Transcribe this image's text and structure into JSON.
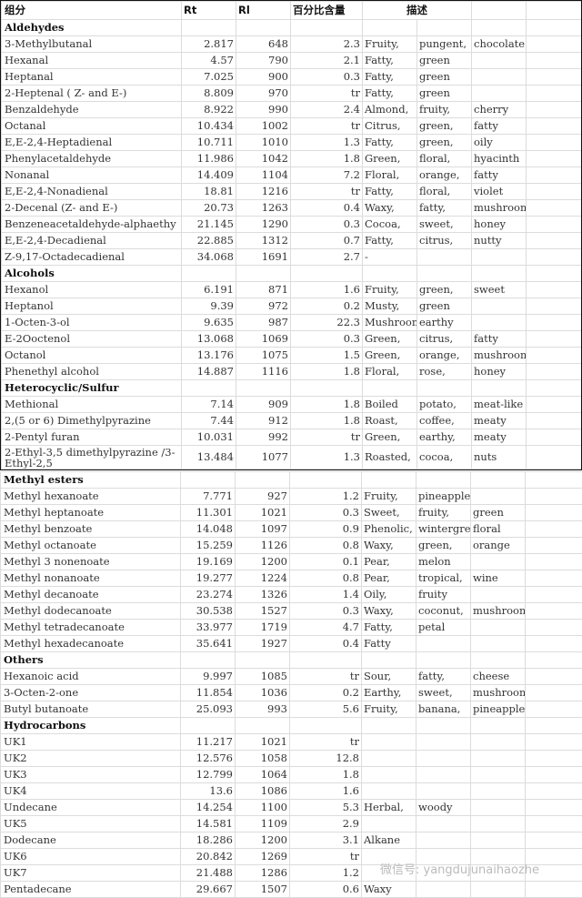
{
  "header": [
    "组分",
    "Rt",
    "Rl",
    "百分比含量",
    "描述"
  ],
  "top_rows": [
    {
      "cat": "Aldehydes"
    },
    [
      "3-Methylbutanal",
      "2.817",
      "648",
      "2.3",
      "Fruity,",
      "pungent,",
      "chocolate"
    ],
    [
      "Hexanal",
      "4.57",
      "790",
      "2.1",
      "Fatty,",
      "green",
      ""
    ],
    [
      "Heptanal",
      "7.025",
      "900",
      "0.3",
      "Fatty,",
      "green",
      ""
    ],
    [
      "2-Heptenal ( Z- and E-)",
      "8.809",
      "970",
      "tr",
      "Fatty,",
      "green",
      ""
    ],
    [
      "Benzaldehyde",
      "8.922",
      "990",
      "2.4",
      "Almond,",
      "fruity,",
      "cherry"
    ],
    [
      "Octanal",
      "10.434",
      "1002",
      "tr",
      "Citrus,",
      "green,",
      "fatty"
    ],
    [
      "E,E-2,4-Heptadienal",
      "10.711",
      "1010",
      "1.3",
      "Fatty,",
      "green,",
      "oily"
    ],
    [
      "Phenylacetaldehyde",
      "11.986",
      "1042",
      "1.8",
      "Green,",
      "floral,",
      "hyacinth"
    ],
    [
      "Nonanal",
      "14.409",
      "1104",
      "7.2",
      "Floral,",
      "orange,",
      "fatty"
    ],
    [
      "E,E-2,4-Nonadienal",
      "18.81",
      "1216",
      "tr",
      "Fatty,",
      "floral,",
      "violet"
    ],
    [
      "2-Decenal (Z- and E-)",
      "20.73",
      "1263",
      "0.4",
      "Waxy,",
      "fatty,",
      "mushroom"
    ],
    [
      "Benzeneacetaldehyde-alphaethy",
      "21.145",
      "1290",
      "0.3",
      "Cocoa,",
      "sweet,",
      "honey"
    ],
    [
      "E,E-2,4-Decadienal",
      "22.885",
      "1312",
      "0.7",
      "Fatty,",
      "citrus,",
      "nutty"
    ],
    [
      "Z-9,17-Octadecadienal",
      "34.068",
      "1691",
      "2.7",
      "-",
      "",
      ""
    ],
    {
      "cat": "Alcohols"
    },
    [
      "Hexanol",
      "6.191",
      "871",
      "1.6",
      "Fruity,",
      "green,",
      "sweet"
    ],
    [
      "Heptanol",
      "9.39",
      "972",
      "0.2",
      "Musty,",
      "green",
      ""
    ],
    [
      "1-Octen-3-ol",
      "9.635",
      "987",
      "22.3",
      "Mushroom,",
      "earthy",
      ""
    ],
    [
      "E-2Ooctenol",
      "13.068",
      "1069",
      "0.3",
      "Green,",
      "citrus,",
      "fatty"
    ],
    [
      "Octanol",
      "13.176",
      "1075",
      "1.5",
      "Green,",
      "orange,",
      "mushroom"
    ],
    [
      "Phenethyl alcohol",
      "14.887",
      "1116",
      "1.8",
      "Floral,",
      "rose,",
      "honey"
    ],
    {
      "cat": "Heterocyclic/Sulfur"
    },
    [
      "Methional",
      "7.14",
      "909",
      "1.8",
      "Boiled",
      "potato,",
      "meat-like"
    ],
    [
      "2,(5 or 6) Dimethylpyrazine",
      "7.44",
      "912",
      "1.8",
      "Roast,",
      "coffee,",
      "meaty"
    ],
    [
      "2-Pentyl furan",
      "10.031",
      "992",
      "tr",
      "Green,",
      "earthy,",
      "meaty"
    ],
    {
      "tall": true,
      "row": [
        "2-Ethyl-3,5 dimethylpyrazine /3-Ethyl-2,5",
        "13.484",
        "1077",
        "1.3",
        "Roasted,",
        "cocoa,",
        "nuts"
      ]
    }
  ],
  "bottom_rows": [
    {
      "cat": "Methyl esters"
    },
    [
      "Methyl hexanoate",
      "7.771",
      "927",
      "1.2",
      "Fruity,",
      "pineapple",
      ""
    ],
    [
      "Methyl heptanoate",
      "11.301",
      "1021",
      "0.3",
      "Sweet,",
      "fruity,",
      "green"
    ],
    [
      "Methyl benzoate",
      "14.048",
      "1097",
      "0.9",
      "Phenolic,",
      "wintergre",
      "floral"
    ],
    [
      "Methyl octanoate",
      "15.259",
      "1126",
      "0.8",
      "Waxy,",
      "green,",
      "orange"
    ],
    [
      "Methyl 3 nonenoate",
      "19.169",
      "1200",
      "0.1",
      "Pear,",
      "melon",
      ""
    ],
    [
      "Methyl nonanoate",
      "19.277",
      "1224",
      "0.8",
      "Pear,",
      "tropical,",
      "wine"
    ],
    [
      "Methyl decanoate",
      "23.274",
      "1326",
      "1.4",
      "Oily,",
      "fruity",
      ""
    ],
    [
      "Methyl dodecanoate",
      "30.538",
      "1527",
      "0.3",
      "Waxy,",
      "coconut,",
      "mushroom"
    ],
    [
      "Methyl tetradecanoate",
      "33.977",
      "1719",
      "4.7",
      "Fatty,",
      "petal",
      ""
    ],
    [
      "Methyl hexadecanoate",
      "35.641",
      "1927",
      "0.4",
      "Fatty",
      "",
      ""
    ],
    {
      "cat": "Others"
    },
    [
      "Hexanoic acid",
      "9.997",
      "1085",
      "tr",
      "Sour,",
      "fatty,",
      "cheese"
    ],
    [
      "3-Octen-2-one",
      "11.854",
      "1036",
      "0.2",
      "Earthy,",
      "sweet,",
      "mushroom"
    ],
    [
      "Butyl butanoate",
      "25.093",
      "993",
      "5.6",
      "Fruity,",
      "banana,",
      "pineapple"
    ],
    {
      "cat": "Hydrocarbons"
    },
    [
      "UK1",
      "11.217",
      "1021",
      "tr",
      "",
      "",
      ""
    ],
    [
      "UK2",
      "12.576",
      "1058",
      "12.8",
      "",
      "",
      ""
    ],
    [
      "UK3",
      "12.799",
      "1064",
      "1.8",
      "",
      "",
      ""
    ],
    [
      "UK4",
      "13.6",
      "1086",
      "1.6",
      "",
      "",
      ""
    ],
    [
      "Undecane",
      "14.254",
      "1100",
      "5.3",
      "Herbal,",
      "woody",
      ""
    ],
    [
      "UK5",
      "14.581",
      "1109",
      "2.9",
      "",
      "",
      ""
    ],
    [
      "Dodecane",
      "18.286",
      "1200",
      "3.1",
      "Alkane",
      "",
      ""
    ],
    [
      "UK6",
      "20.842",
      "1269",
      "tr",
      "",
      "",
      ""
    ],
    [
      "UK7",
      "21.488",
      "1286",
      "1.2",
      "",
      "",
      ""
    ],
    [
      "Pentadecane",
      "29.667",
      "1507",
      "0.6",
      "Waxy",
      "",
      ""
    ]
  ],
  "watermark": "微信号: yangdujunaihaozhe"
}
